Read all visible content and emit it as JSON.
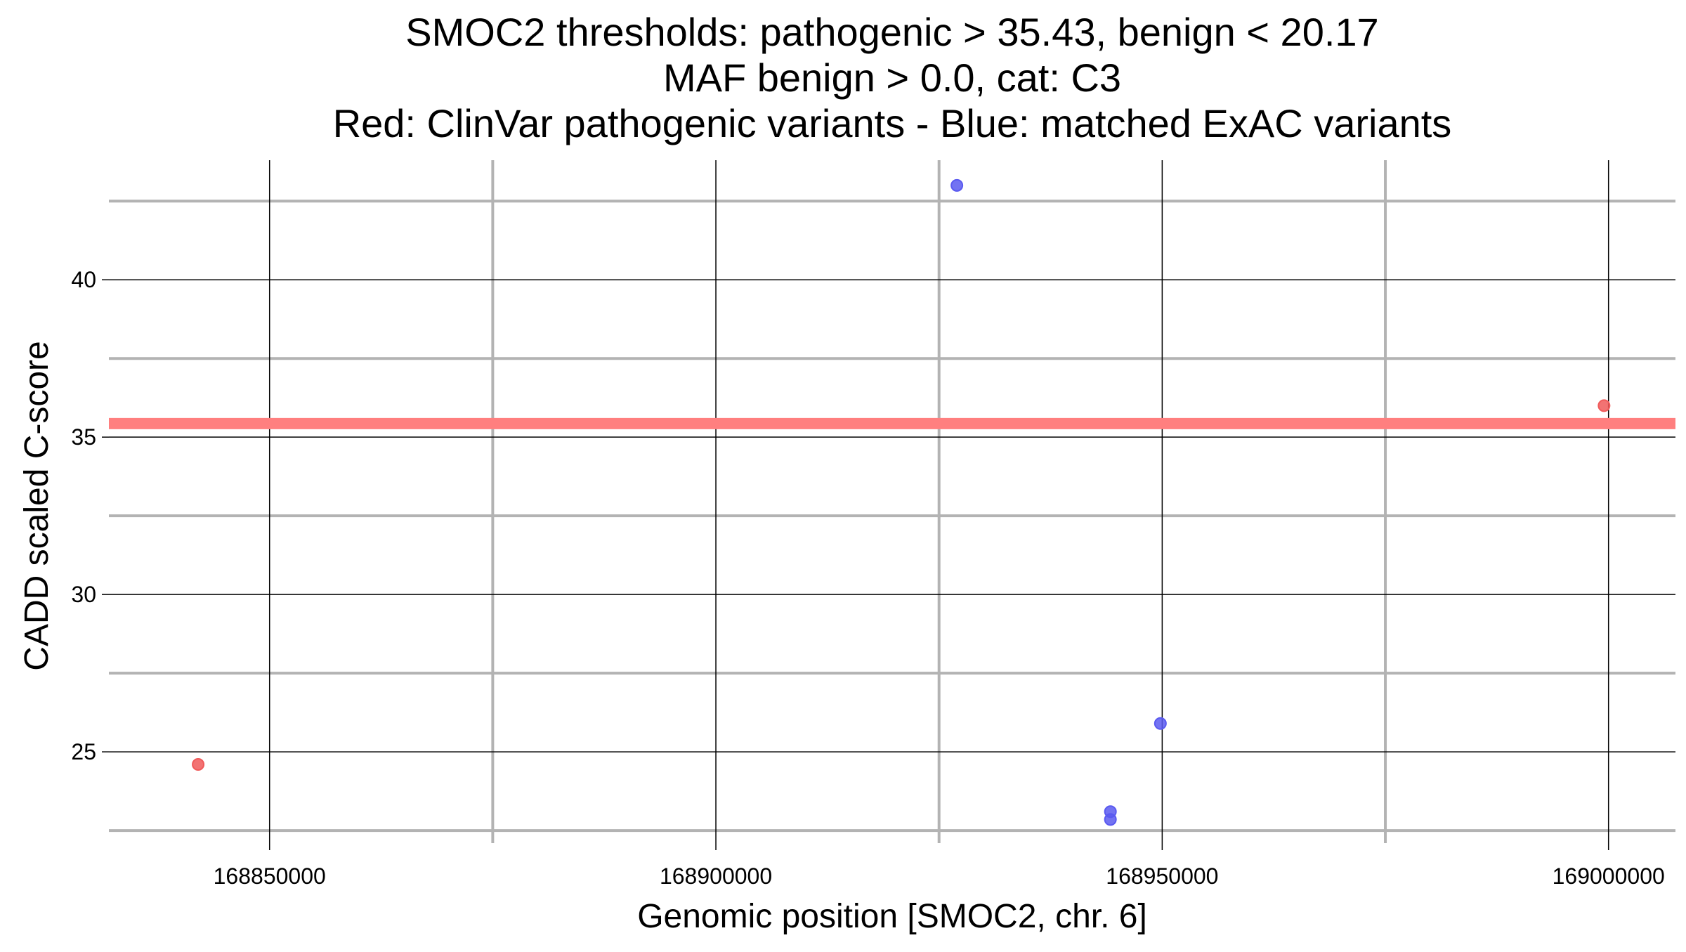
{
  "chart_data": {
    "type": "scatter",
    "title_lines": [
      "SMOC2 thresholds: pathogenic > 35.43, benign < 20.17",
      "MAF benign > 0.0, cat: C3",
      "Red: ClinVar pathogenic variants - Blue: matched ExAC variants"
    ],
    "xlabel": "Genomic position [SMOC2, chr. 6]",
    "ylabel": "CADD scaled C-score",
    "xlim": [
      168832000,
      169007500
    ],
    "ylim": [
      22.1,
      43.8
    ],
    "x_ticks": [
      168850000,
      168900000,
      168950000,
      169000000
    ],
    "x_tick_labels": [
      "168850000",
      "168900000",
      "168950000",
      "169000000"
    ],
    "x_minor_ticks": [
      168875000,
      168925000,
      168975000
    ],
    "y_ticks": [
      25,
      30,
      35,
      40
    ],
    "y_tick_labels": [
      "25",
      "30",
      "35",
      "40"
    ],
    "y_minor_ticks": [
      22.5,
      27.5,
      32.5,
      37.5,
      42.5
    ],
    "threshold_line": {
      "y": 35.43,
      "color": "#ff7f7f"
    },
    "grid": true,
    "series": [
      {
        "color": "#f05a5a",
        "points": [
          {
            "x": 168842000,
            "y": 24.6
          },
          {
            "x": 168999500,
            "y": 36.0
          }
        ]
      },
      {
        "color": "#5a5af0",
        "points": [
          {
            "x": 168927000,
            "y": 43.0
          },
          {
            "x": 168944200,
            "y": 23.1
          },
          {
            "x": 168944200,
            "y": 22.85
          },
          {
            "x": 168949800,
            "y": 25.9
          }
        ]
      }
    ]
  }
}
